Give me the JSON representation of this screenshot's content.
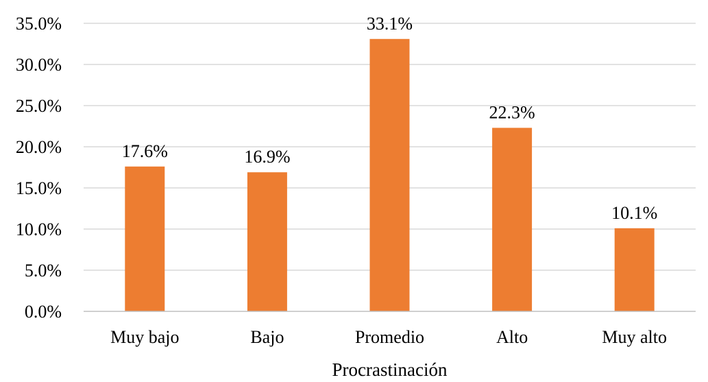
{
  "chart_data": {
    "type": "bar",
    "categories": [
      "Muy bajo",
      "Bajo",
      "Promedio",
      "Alto",
      "Muy alto"
    ],
    "values": [
      17.6,
      16.9,
      33.1,
      22.3,
      10.1
    ],
    "data_labels": [
      "17.6%",
      "16.9%",
      "33.1%",
      "22.3%",
      "10.1%"
    ],
    "y_ticks": [
      0,
      5,
      10,
      15,
      20,
      25,
      30,
      35
    ],
    "y_tick_labels": [
      "0.0%",
      "5.0%",
      "10.0%",
      "15.0%",
      "20.0%",
      "25.0%",
      "30.0%",
      "35.0%"
    ],
    "xlabel": "Procrastinación",
    "ylabel": "",
    "ylim": [
      0,
      35
    ],
    "grid": true,
    "bar_color": "#ed7d31"
  }
}
